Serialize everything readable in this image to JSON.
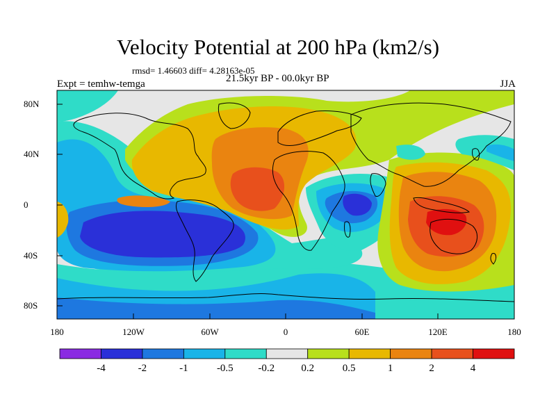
{
  "header": {
    "title": "Velocity Potential at 200 hPa (km2/s)",
    "stats": "rmsd= 1.46603 diff= 4.28163e-05",
    "experiment": "Expt = temhw-temga",
    "period": "21.5kyr BP - 00.0kyr BP",
    "season": "JJA"
  },
  "axes": {
    "y_ticks": [
      "80N",
      "40N",
      "0",
      "40S",
      "80S"
    ],
    "x_ticks": [
      "180",
      "120W",
      "60W",
      "0",
      "60E",
      "120E",
      "180"
    ]
  },
  "colorbar": {
    "labels": [
      "-4",
      "-2",
      "-1",
      "-0.5",
      "-0.2",
      "0.2",
      "0.5",
      "1",
      "2",
      "4"
    ],
    "colors": [
      "#8a2be2",
      "#2a30d8",
      "#1e78e0",
      "#19b4e8",
      "#2fdcc8",
      "#e6e6e6",
      "#b8e01c",
      "#e8b800",
      "#ea8410",
      "#e8501c",
      "#e01010"
    ]
  },
  "map": {
    "background_color": "#e6e6e6",
    "projection": "cylindrical-equidistant",
    "lon_range": [
      -180,
      180
    ],
    "lat_range": [
      -90,
      90
    ]
  }
}
